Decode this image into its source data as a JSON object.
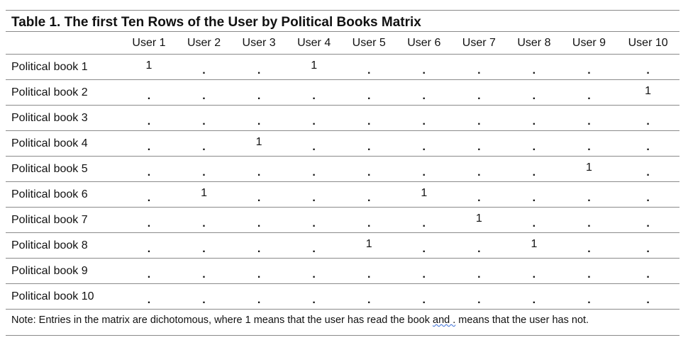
{
  "title": "Table 1. The first Ten Rows of the User by Political Books Matrix",
  "columns": [
    "User 1",
    "User 2",
    "User 3",
    "User 4",
    "User 5",
    "User 6",
    "User 7",
    "User 8",
    "User 9",
    "User 10"
  ],
  "rows": [
    {
      "label": "Political book 1",
      "values": [
        "1",
        ".",
        ".",
        "1",
        ".",
        ".",
        ".",
        ".",
        ".",
        "."
      ]
    },
    {
      "label": "Political book 2",
      "values": [
        ".",
        ".",
        ".",
        ".",
        ".",
        ".",
        ".",
        ".",
        ".",
        "1"
      ]
    },
    {
      "label": "Political book 3",
      "values": [
        ".",
        ".",
        ".",
        ".",
        ".",
        ".",
        ".",
        ".",
        ".",
        "."
      ]
    },
    {
      "label": "Political book 4",
      "values": [
        ".",
        ".",
        "1",
        ".",
        ".",
        ".",
        ".",
        ".",
        ".",
        "."
      ]
    },
    {
      "label": "Political book 5",
      "values": [
        ".",
        ".",
        ".",
        ".",
        ".",
        ".",
        ".",
        ".",
        "1",
        "."
      ]
    },
    {
      "label": "Political book 6",
      "values": [
        ".",
        "1",
        ".",
        ".",
        ".",
        "1",
        ".",
        ".",
        ".",
        "."
      ]
    },
    {
      "label": "Political book 7",
      "values": [
        ".",
        ".",
        ".",
        ".",
        ".",
        ".",
        "1",
        ".",
        ".",
        "."
      ]
    },
    {
      "label": "Political book 8",
      "values": [
        ".",
        ".",
        ".",
        ".",
        "1",
        ".",
        ".",
        "1",
        ".",
        "."
      ]
    },
    {
      "label": "Political book 9",
      "values": [
        ".",
        ".",
        ".",
        ".",
        ".",
        ".",
        ".",
        ".",
        ".",
        "."
      ]
    },
    {
      "label": "Political book 10",
      "values": [
        ".",
        ".",
        ".",
        ".",
        ".",
        ".",
        ".",
        ".",
        ".",
        "."
      ]
    }
  ],
  "note": {
    "before": "Note: Entries in the matrix are dichotomous, where 1 means that the user has read the book ",
    "squiggle": "and .",
    "after": " means that the user has not."
  }
}
